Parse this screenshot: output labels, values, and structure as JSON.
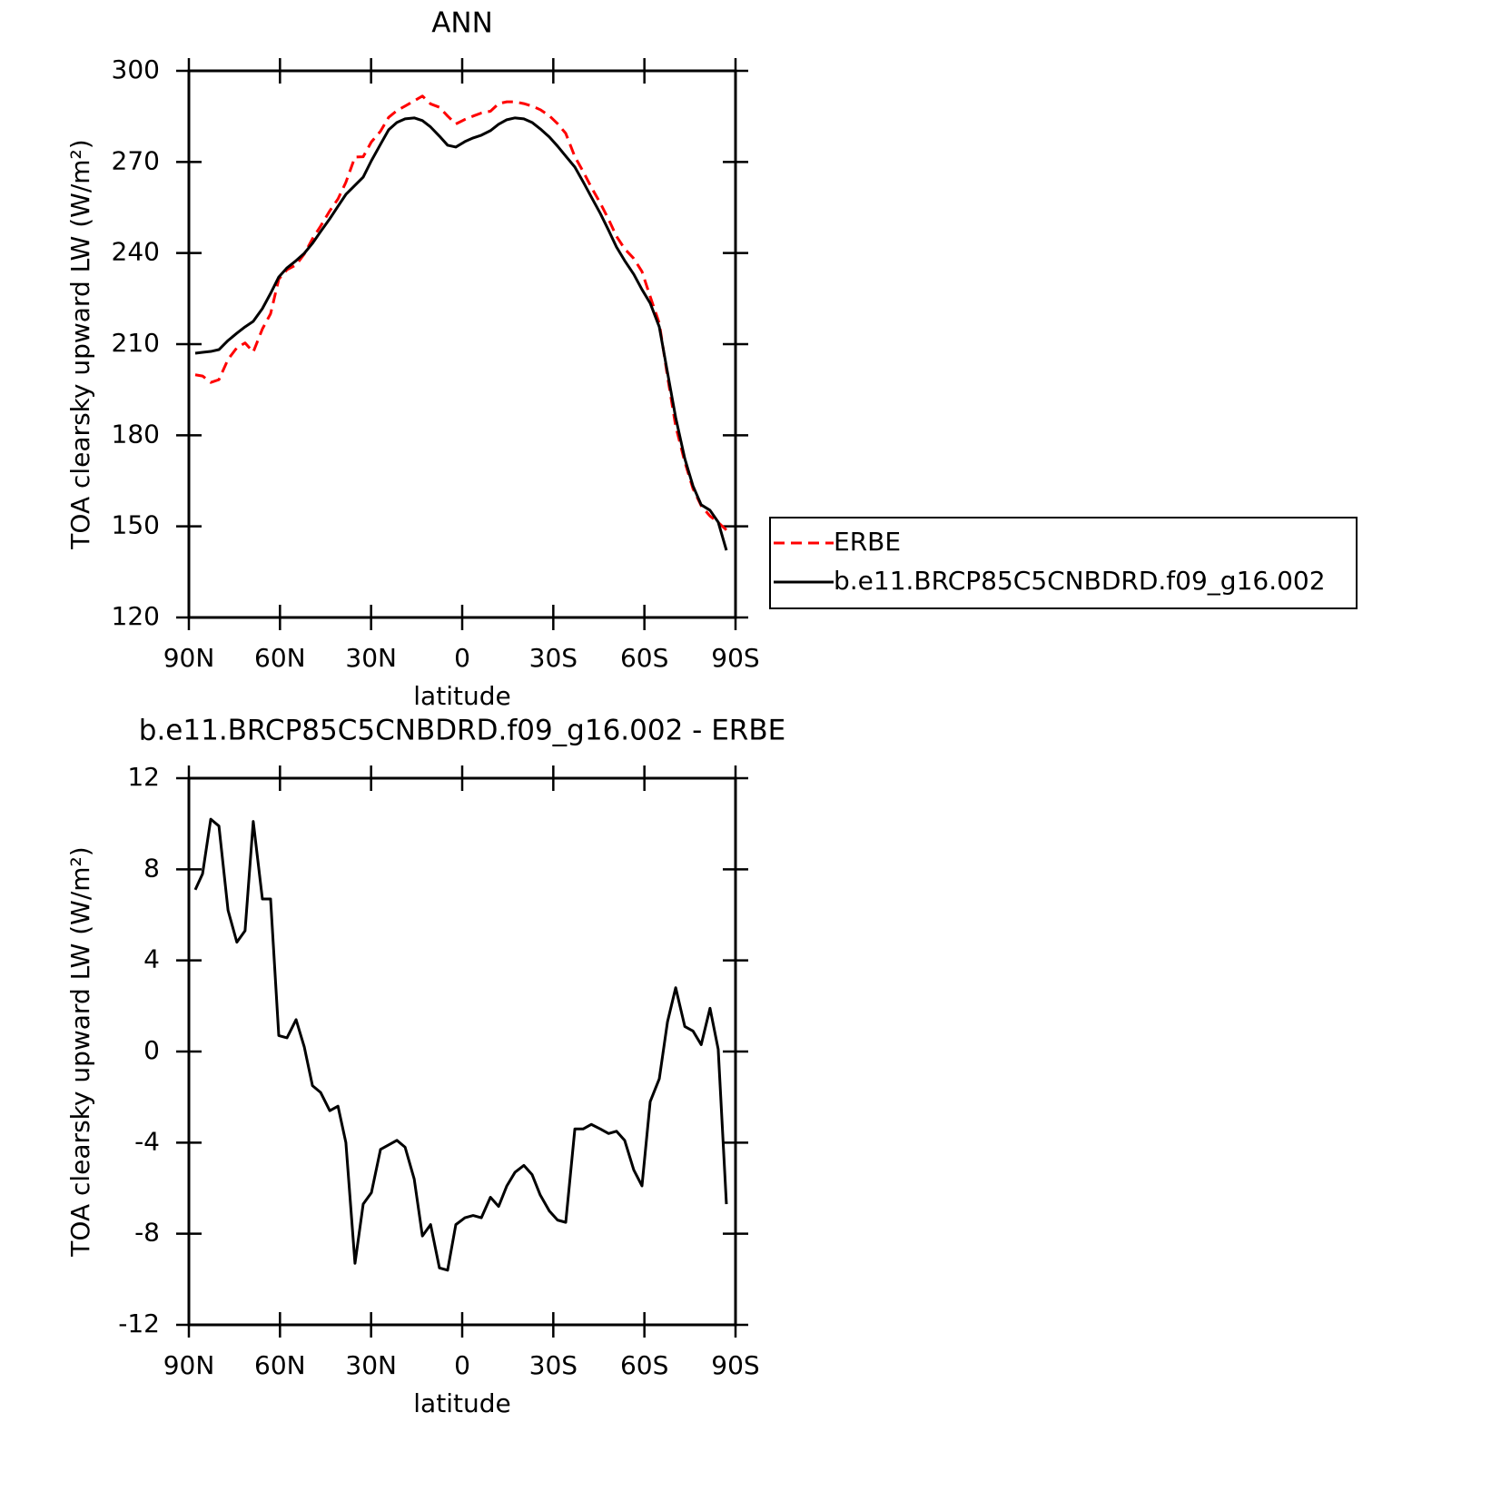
{
  "chart_data": [
    {
      "type": "line",
      "title": "ANN",
      "xlabel": "latitude",
      "ylabel": "TOA clearsky upward LW (W/m²)",
      "x": [
        87.9,
        85.5,
        82.8,
        80.1,
        77.1,
        74.2,
        71.5,
        68.8,
        65.8,
        63.1,
        60.4,
        57.7,
        54.7,
        52.0,
        49.3,
        46.6,
        43.6,
        40.9,
        38.3,
        35.3,
        32.6,
        29.9,
        26.9,
        24.2,
        21.5,
        18.8,
        15.8,
        13.1,
        10.4,
        7.5,
        4.8,
        2.1,
        -0.9,
        -3.6,
        -6.3,
        -9.3,
        -12.0,
        -14.7,
        -17.4,
        -20.3,
        -23.0,
        -25.7,
        -28.7,
        -31.4,
        -34.1,
        -37.1,
        -39.8,
        -42.5,
        -45.5,
        -48.2,
        -50.8,
        -53.5,
        -56.5,
        -59.2,
        -61.9,
        -64.9,
        -67.6,
        -70.3,
        -73.3,
        -76.0,
        -78.7,
        -81.6,
        -84.3,
        -87.0
      ],
      "series": [
        {
          "name": "ERBE",
          "color": "#ff0000",
          "dashed": true,
          "values": [
            199.9,
            199.5,
            197.4,
            198.3,
            205.0,
            208.8,
            210.4,
            207.4,
            215.0,
            220.0,
            231.4,
            234.5,
            236.1,
            239.7,
            244.7,
            248.9,
            253.9,
            257.8,
            263.3,
            271.6,
            271.7,
            276.6,
            280.1,
            284.7,
            286.9,
            288.4,
            290.1,
            291.7,
            289.1,
            288.0,
            285.1,
            282.5,
            284.0,
            285.1,
            286.1,
            286.7,
            289.2,
            289.8,
            289.8,
            289.2,
            288.4,
            287.2,
            285.2,
            282.6,
            279.4,
            271.7,
            266.9,
            261.7,
            256.4,
            251.1,
            245.5,
            241.4,
            238.2,
            233.9,
            225.7,
            216.9,
            199.4,
            183.0,
            171.2,
            162.4,
            156.8,
            153.4,
            151.3,
            148.8
          ]
        },
        {
          "name": "b.e11.BRCP85C5CNBDRD.f09_g16.002",
          "color": "#000000",
          "dashed": false,
          "values": [
            207.0,
            207.3,
            207.6,
            208.2,
            211.2,
            213.6,
            215.7,
            217.5,
            221.7,
            226.7,
            232.1,
            235.1,
            237.5,
            239.9,
            243.2,
            247.1,
            251.3,
            255.4,
            259.3,
            262.3,
            265.0,
            270.4,
            275.8,
            280.6,
            283.0,
            284.2,
            284.5,
            283.6,
            281.5,
            278.5,
            275.5,
            274.9,
            276.7,
            277.9,
            278.8,
            280.3,
            282.4,
            283.9,
            284.5,
            284.2,
            283.0,
            280.9,
            278.2,
            275.2,
            271.9,
            268.3,
            263.5,
            258.5,
            253.0,
            247.5,
            242.0,
            237.5,
            233.0,
            228.0,
            223.5,
            215.7,
            200.7,
            185.8,
            172.3,
            163.3,
            157.1,
            155.3,
            151.4,
            142.1
          ]
        }
      ],
      "xlim": [
        90,
        -90
      ],
      "xticks": [
        {
          "value": 90,
          "label": "90N"
        },
        {
          "value": 60,
          "label": "60N"
        },
        {
          "value": 30,
          "label": "30N"
        },
        0,
        {
          "value": -30,
          "label": "30S"
        },
        {
          "value": -60,
          "label": "60S"
        },
        {
          "value": -90,
          "label": "90S"
        }
      ],
      "ylim": [
        120,
        300
      ],
      "yticks": [
        120,
        150,
        180,
        210,
        240,
        270,
        300
      ],
      "legend": "right"
    },
    {
      "type": "line",
      "title": "b.e11.BRCP85C5CNBDRD.f09_g16.002 - ERBE",
      "xlabel": "latitude",
      "ylabel": "TOA clearsky upward LW (W/m²)",
      "x": [
        87.9,
        85.5,
        82.8,
        80.1,
        77.1,
        74.2,
        71.5,
        68.8,
        65.8,
        63.1,
        60.4,
        57.7,
        54.7,
        52.0,
        49.3,
        46.6,
        43.6,
        40.9,
        38.3,
        35.3,
        32.6,
        29.9,
        26.9,
        24.2,
        21.5,
        18.8,
        15.8,
        13.1,
        10.4,
        7.5,
        4.8,
        2.1,
        -0.9,
        -3.6,
        -6.3,
        -9.3,
        -12.0,
        -14.7,
        -17.4,
        -20.3,
        -23.0,
        -25.7,
        -28.7,
        -31.4,
        -34.1,
        -37.1,
        -39.8,
        -42.5,
        -45.5,
        -48.2,
        -50.8,
        -53.5,
        -56.5,
        -59.2,
        -61.9,
        -64.9,
        -67.6,
        -70.3,
        -73.3,
        -76.0,
        -78.7,
        -81.6,
        -84.3,
        -87.0
      ],
      "series": [
        {
          "color": "#000000",
          "dashed": false,
          "values": [
            7.1,
            7.8,
            10.2,
            9.9,
            6.2,
            4.8,
            5.3,
            10.1,
            6.7,
            6.7,
            0.7,
            0.6,
            1.4,
            0.2,
            -1.5,
            -1.8,
            -2.6,
            -2.4,
            -4.0,
            -9.3,
            -6.7,
            -6.2,
            -4.3,
            -4.1,
            -3.9,
            -4.2,
            -5.6,
            -8.1,
            -7.6,
            -9.5,
            -9.6,
            -7.6,
            -7.3,
            -7.2,
            -7.3,
            -6.4,
            -6.8,
            -5.9,
            -5.3,
            -5.0,
            -5.4,
            -6.3,
            -7.0,
            -7.4,
            -7.5,
            -3.4,
            -3.4,
            -3.2,
            -3.4,
            -3.6,
            -3.5,
            -3.9,
            -5.2,
            -5.9,
            -2.2,
            -1.2,
            1.3,
            2.8,
            1.1,
            0.9,
            0.3,
            1.9,
            0.1,
            -6.7
          ]
        }
      ],
      "xlim": [
        90,
        -90
      ],
      "xticks": [
        {
          "value": 90,
          "label": "90N"
        },
        {
          "value": 60,
          "label": "60N"
        },
        {
          "value": 30,
          "label": "30N"
        },
        0,
        {
          "value": -30,
          "label": "30S"
        },
        {
          "value": -60,
          "label": "60S"
        },
        {
          "value": -90,
          "label": "90S"
        }
      ],
      "ylim": [
        -12,
        12
      ],
      "yticks": [
        -12,
        -8,
        -4,
        0,
        4,
        8,
        12
      ]
    }
  ]
}
